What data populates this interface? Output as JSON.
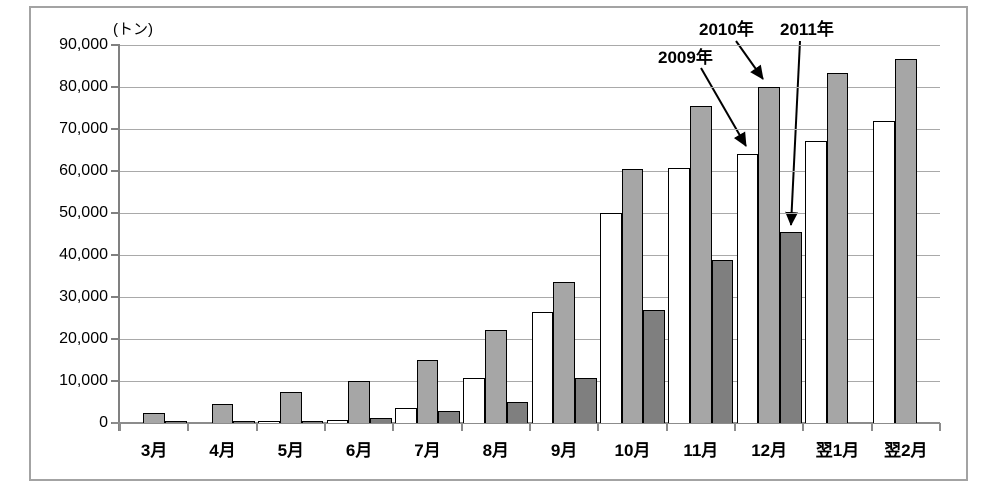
{
  "chart_data": {
    "type": "bar",
    "title": "",
    "unit_label": "(トン)",
    "xlabel": "",
    "ylabel": "(トン)",
    "ylim": [
      0,
      90000
    ],
    "ytick_step": 10000,
    "ytick_labels": [
      "0",
      "10,000",
      "20,000",
      "30,000",
      "40,000",
      "50,000",
      "60,000",
      "70,000",
      "80,000",
      "90,000"
    ],
    "grid": true,
    "legend_position": "arrow-annotations",
    "categories": [
      "3月",
      "4月",
      "5月",
      "6月",
      "7月",
      "8月",
      "9月",
      "10月",
      "11月",
      "12月",
      "翌1月",
      "翌2月"
    ],
    "series": [
      {
        "name": "2009年",
        "fill": "#ffffff",
        "values": [
          0,
          0,
          500,
          800,
          3600,
          10800,
          26500,
          50100,
          60800,
          64000,
          67200,
          71800
        ]
      },
      {
        "name": "2010年",
        "fill": "#a6a6a6",
        "values": [
          2500,
          4500,
          7400,
          10000,
          15100,
          22200,
          33700,
          60400,
          75500,
          80100,
          83300,
          86600
        ]
      },
      {
        "name": "2011年",
        "fill": "#7f7f7f",
        "values": [
          500,
          400,
          500,
          1200,
          2900,
          5000,
          10800,
          27000,
          38800,
          45500,
          null,
          null
        ]
      }
    ],
    "bar_border_color": "#000000",
    "annotations": [
      {
        "label": "2009年",
        "text_x": 658,
        "text_y": 48,
        "ax": 701,
        "ay": 68,
        "bx": 746,
        "by": 146
      },
      {
        "label": "2010年",
        "text_x": 699,
        "text_y": 20,
        "ax": 736,
        "ay": 41,
        "bx": 763,
        "by": 79
      },
      {
        "label": "2011年",
        "text_x": 780,
        "text_y": 20,
        "ax": 800,
        "ay": 41,
        "bx": 791,
        "by": 225
      }
    ]
  }
}
